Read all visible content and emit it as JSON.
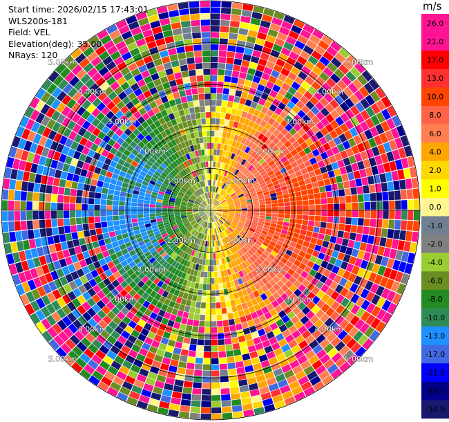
{
  "header": {
    "start_time": "Start time: 2026/02/15 17:43:01",
    "instrument": "WLS200s-181",
    "field": "Field: VEL",
    "elevation": "Elevation(deg): 35.00",
    "nrays": "NRays: 120"
  },
  "colorbar": {
    "unit": "m/s",
    "ticks": [
      "26.0",
      "21.0",
      "17.0",
      "13.0",
      "10.0",
      "8.0",
      "6.0",
      "4.0",
      "2.0",
      "1.0",
      "0.0",
      "-1.0",
      "-2.0",
      "-4.0",
      "-6.0",
      "-8.0",
      "-10.0",
      "-13.0",
      "-17.0",
      "-21.0",
      "-26.0",
      "-30.0"
    ],
    "colors": [
      "#ff1493",
      "#ff1493",
      "#ff1493",
      "#ff0000",
      "#ff3030",
      "#ff4500",
      "#ff6347",
      "#ff7f50",
      "#ffa500",
      "#ffd700",
      "#ffff00",
      "#fff68f",
      "#708090",
      "#808080",
      "#9acd32",
      "#6b8e23",
      "#228b22",
      "#2e8b57",
      "#1e90ff",
      "#4169e1",
      "#0000ff",
      "#00008b",
      "#191970"
    ]
  },
  "chart_data": {
    "type": "heatmap",
    "projection": "polar-ppi",
    "field": "VEL",
    "nrays": 120,
    "range_rings_km": [
      1,
      2,
      3,
      4,
      5
    ],
    "ring_labels": [
      "1.00km",
      "2.00km",
      "3.00km",
      "4.00km",
      "5.00km"
    ],
    "max_range_km": 5.0,
    "value_range": [
      -30,
      30
    ],
    "radial_velocity_pattern": "positive toward east (right), negative toward west (left); noise beyond ~2.5 km"
  }
}
